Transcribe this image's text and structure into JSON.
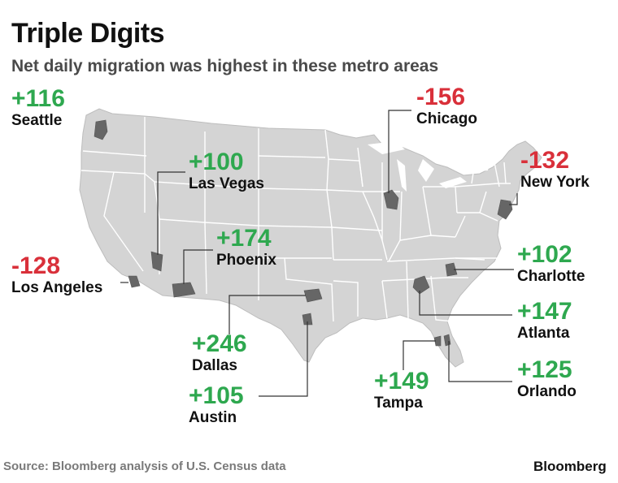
{
  "title": "Triple Digits",
  "subtitle": "Net daily migration was highest in these metro areas",
  "source": "Source: Bloomberg analysis of U.S. Census data",
  "brand": "Bloomberg",
  "colors": {
    "positive": "#2ea84f",
    "negative": "#d9303a",
    "land": "#d4d4d4",
    "border": "#ffffff",
    "metro": "#666666",
    "leader": "#333333"
  },
  "metros": [
    {
      "id": "seattle",
      "city": "Seattle",
      "value": "+116",
      "sign": "pos"
    },
    {
      "id": "chicago",
      "city": "Chicago",
      "value": "-156",
      "sign": "neg"
    },
    {
      "id": "las-vegas",
      "city": "Las Vegas",
      "value": "+100",
      "sign": "pos"
    },
    {
      "id": "new-york",
      "city": "New York",
      "value": "-132",
      "sign": "neg"
    },
    {
      "id": "phoenix",
      "city": "Phoenix",
      "value": "+174",
      "sign": "pos"
    },
    {
      "id": "los-angeles",
      "city": "Los Angeles",
      "value": "-128",
      "sign": "neg"
    },
    {
      "id": "charlotte",
      "city": "Charlotte",
      "value": "+102",
      "sign": "pos"
    },
    {
      "id": "atlanta",
      "city": "Atlanta",
      "value": "+147",
      "sign": "pos"
    },
    {
      "id": "dallas",
      "city": "Dallas",
      "value": "+246",
      "sign": "pos"
    },
    {
      "id": "orlando",
      "city": "Orlando",
      "value": "+125",
      "sign": "pos"
    },
    {
      "id": "tampa",
      "city": "Tampa",
      "value": "+149",
      "sign": "pos"
    },
    {
      "id": "austin",
      "city": "Austin",
      "value": "+105",
      "sign": "pos"
    }
  ]
}
